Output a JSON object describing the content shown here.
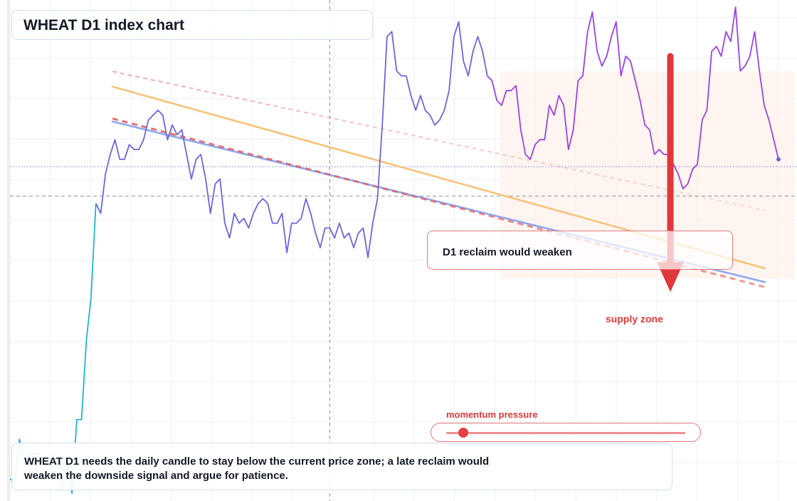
{
  "title": "WHEAT D1 index chart",
  "callout": {
    "text": "D1 reclaim would weaken"
  },
  "supply_label": "supply zone",
  "momentum": {
    "label": "momentum pressure",
    "level": 0.07
  },
  "summary": {
    "line1": "WHEAT D1 needs the daily candle to stay below the current price zone; a late reclaim would",
    "line2": "weaken the downside signal and argue for patience."
  },
  "colors": {
    "price_early": "#1fb3d8",
    "price_mid": "#6a66e0",
    "price_late": "#9a43e6",
    "orange_trend": "#f7c27a",
    "blue_trend": "#8fa8f0",
    "bearish_red": "#e0373a",
    "zone_fill": "#fdf1ea",
    "grid": "#eef0f4"
  },
  "chart_data": {
    "type": "line",
    "title": "WHEAT D1 index chart",
    "xlabel": "",
    "ylabel": "",
    "x_ticks": [],
    "y_ticks": [],
    "grid": true,
    "ylim": [
      0,
      100
    ],
    "series": [
      {
        "values": [
          4,
          3,
          12,
          7,
          9,
          9,
          9,
          4,
          4,
          9,
          7,
          2,
          7,
          1,
          16,
          16,
          32,
          41,
          60,
          58,
          66,
          70,
          73,
          69,
          69,
          72,
          71,
          71,
          73,
          77,
          78,
          79,
          78,
          73,
          76,
          74,
          75,
          70,
          65,
          69,
          70,
          65,
          58,
          64,
          65,
          56,
          53,
          58,
          56,
          57,
          55,
          58,
          60,
          61,
          60,
          56,
          56,
          58,
          50,
          56,
          56,
          57,
          61,
          58,
          54,
          51,
          55,
          55,
          53,
          56,
          53,
          54,
          51,
          54,
          55,
          49,
          56,
          61,
          76,
          94,
          95,
          87,
          86,
          86,
          82,
          79,
          82,
          79,
          78,
          76,
          77,
          79,
          83,
          94,
          97,
          89,
          86,
          91,
          94,
          91,
          86,
          85,
          81,
          80,
          83,
          83,
          84,
          75,
          70,
          69,
          72,
          73,
          73,
          80,
          78,
          82,
          80,
          71,
          75,
          85,
          86,
          95,
          99,
          91,
          88,
          90,
          94,
          97,
          86,
          90,
          89,
          85,
          81,
          76,
          75,
          70,
          71,
          70,
          70,
          68,
          66,
          63,
          64,
          67,
          68,
          77,
          79,
          91,
          92,
          90,
          95,
          93,
          100,
          87,
          88,
          90,
          95,
          87,
          80,
          77,
          73,
          69
        ]
      }
    ],
    "trendlines": [
      {
        "from": [
          0,
          83.8
        ],
        "to": [
          100,
          46.8
        ]
      },
      {
        "from": [
          0,
          76.7
        ],
        "to": [
          100,
          44.0
        ]
      }
    ],
    "bearish_channel": [
      {
        "from": [
          0,
          86.9
        ],
        "to": [
          100,
          58.6
        ]
      },
      {
        "from": [
          0,
          77.3
        ],
        "to": [
          100,
          43.0
        ]
      }
    ],
    "levels": [
      {
        "value": 67.5,
        "style": "dotted"
      },
      {
        "value": 61.5,
        "style": "dashed"
      }
    ],
    "crosshair_x": 67.0,
    "supply_zone": {
      "x": [
        59.4,
        104.5
      ],
      "y": [
        44.7,
        86.9
      ]
    },
    "arrow": {
      "x": 85.5,
      "from": 90.0,
      "to": 42.0
    }
  }
}
